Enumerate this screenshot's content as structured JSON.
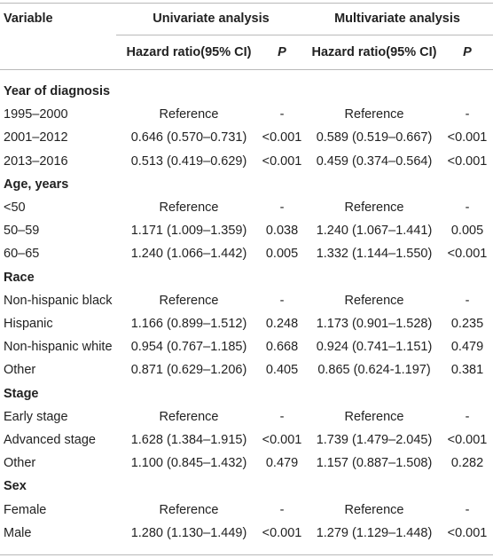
{
  "header": {
    "variable": "Variable",
    "univariate": "Univariate analysis",
    "multivariate": "Multivariate analysis",
    "hr_uni": "Hazard ratio(95% CI)",
    "p_uni": "P",
    "hr_multi": "Hazard ratio(95% CI)",
    "p_multi": "P"
  },
  "rows": [
    {
      "type": "section",
      "label": "Year of diagnosis"
    },
    {
      "type": "data",
      "label": "1995–2000",
      "uni_hr": "Reference",
      "uni_p": "-",
      "multi_hr": "Reference",
      "multi_p": "-"
    },
    {
      "type": "data",
      "label": "2001–2012",
      "uni_hr": "0.646 (0.570–0.731)",
      "uni_p": "<0.001",
      "multi_hr": "0.589 (0.519–0.667)",
      "multi_p": "<0.001"
    },
    {
      "type": "data",
      "label": "2013–2016",
      "uni_hr": "0.513 (0.419–0.629)",
      "uni_p": "<0.001",
      "multi_hr": "0.459 (0.374–0.564)",
      "multi_p": "<0.001"
    },
    {
      "type": "section",
      "label": "Age, years"
    },
    {
      "type": "data",
      "label": "<50",
      "uni_hr": "Reference",
      "uni_p": "-",
      "multi_hr": "Reference",
      "multi_p": "-"
    },
    {
      "type": "data",
      "label": "50–59",
      "uni_hr": "1.171 (1.009–1.359)",
      "uni_p": "0.038",
      "multi_hr": "1.240 (1.067–1.441)",
      "multi_p": "0.005"
    },
    {
      "type": "data",
      "label": "60–65",
      "uni_hr": "1.240 (1.066–1.442)",
      "uni_p": "0.005",
      "multi_hr": "1.332 (1.144–1.550)",
      "multi_p": "<0.001"
    },
    {
      "type": "section",
      "label": "Race"
    },
    {
      "type": "data",
      "label": "Non-hispanic black",
      "uni_hr": "Reference",
      "uni_p": "-",
      "multi_hr": "Reference",
      "multi_p": "-"
    },
    {
      "type": "data",
      "label": "Hispanic",
      "uni_hr": "1.166 (0.899–1.512)",
      "uni_p": "0.248",
      "multi_hr": "1.173 (0.901–1.528)",
      "multi_p": "0.235"
    },
    {
      "type": "data",
      "label": "Non-hispanic white",
      "uni_hr": "0.954 (0.767–1.185)",
      "uni_p": "0.668",
      "multi_hr": "0.924 (0.741–1.151)",
      "multi_p": "0.479"
    },
    {
      "type": "data",
      "label": "Other",
      "uni_hr": "0.871 (0.629–1.206)",
      "uni_p": "0.405",
      "multi_hr": "0.865 (0.624-1.197)",
      "multi_p": "0.381"
    },
    {
      "type": "section",
      "label": "Stage"
    },
    {
      "type": "data",
      "label": "Early stage",
      "uni_hr": "Reference",
      "uni_p": "-",
      "multi_hr": "Reference",
      "multi_p": "-"
    },
    {
      "type": "data",
      "label": "Advanced stage",
      "uni_hr": "1.628 (1.384–1.915)",
      "uni_p": "<0.001",
      "multi_hr": "1.739 (1.479–2.045)",
      "multi_p": "<0.001"
    },
    {
      "type": "data",
      "label": "Other",
      "uni_hr": "1.100 (0.845–1.432)",
      "uni_p": "0.479",
      "multi_hr": "1.157 (0.887–1.508)",
      "multi_p": "0.282"
    },
    {
      "type": "section",
      "label": "Sex"
    },
    {
      "type": "data",
      "label": "Female",
      "uni_hr": "Reference",
      "uni_p": "-",
      "multi_hr": "Reference",
      "multi_p": "-"
    },
    {
      "type": "data",
      "label": "Male",
      "uni_hr": "1.280 (1.130–1.449)",
      "uni_p": "<0.001",
      "multi_hr": "1.279 (1.129–1.448)",
      "multi_p": "<0.001"
    }
  ]
}
